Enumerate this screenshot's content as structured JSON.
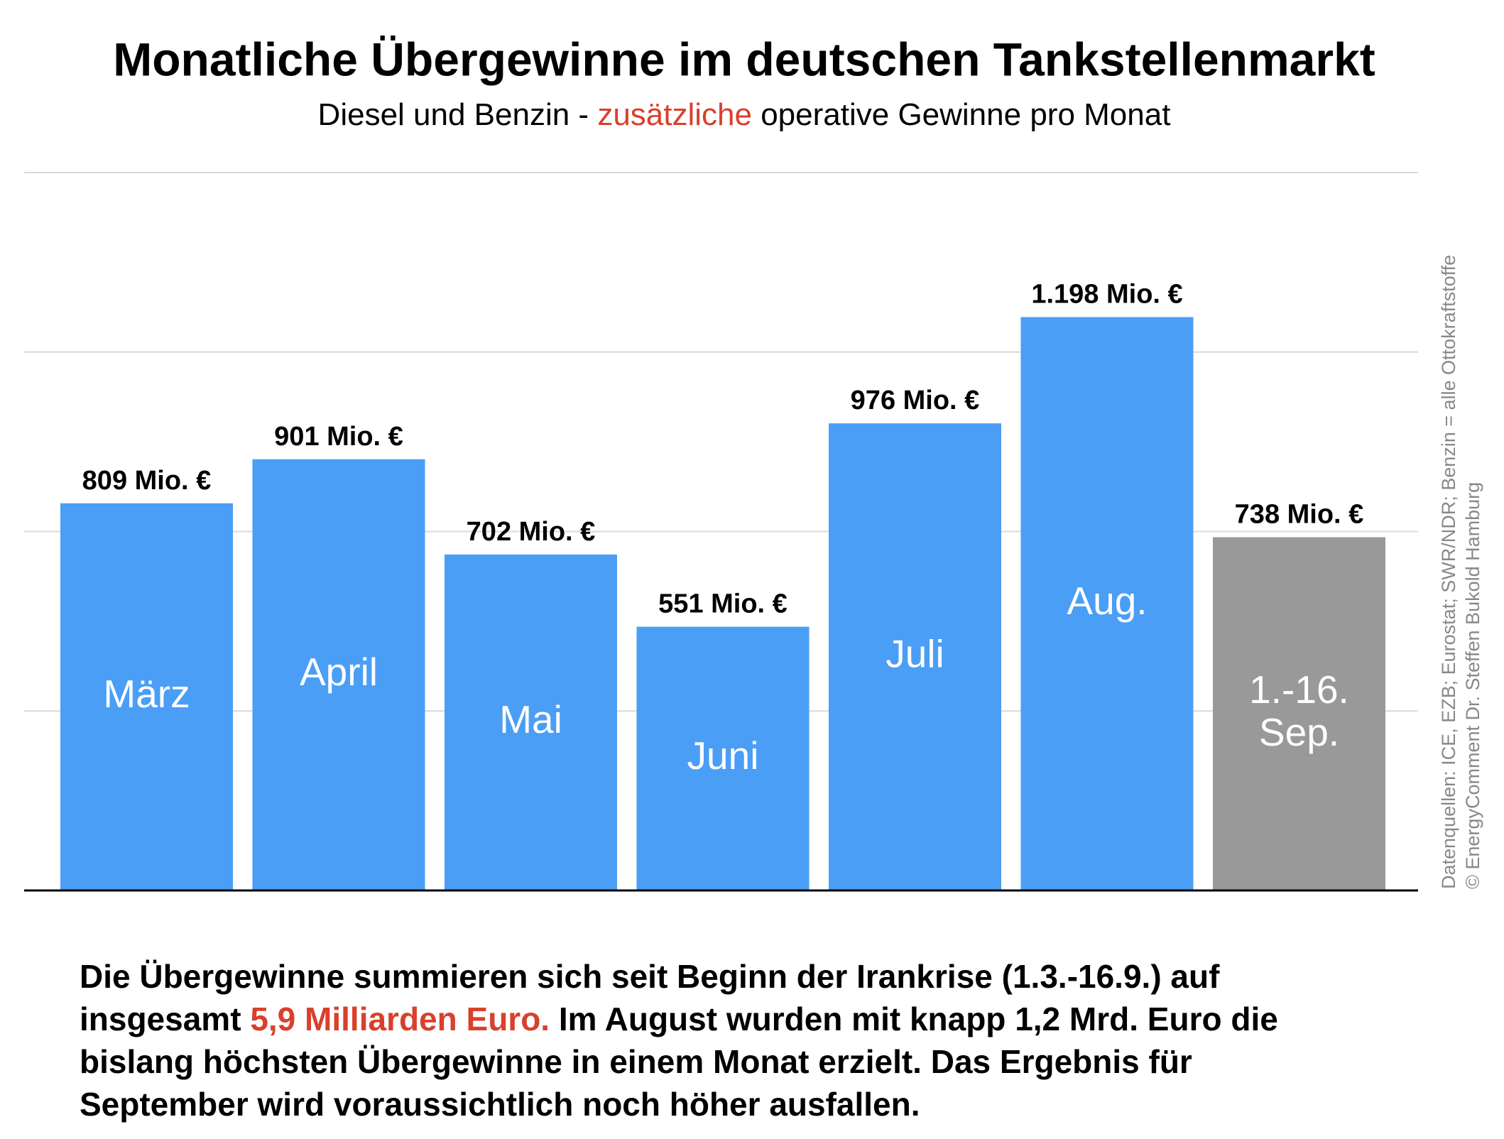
{
  "chart_data": {
    "type": "bar",
    "title": "Monatliche Übergewinne im deutschen Tankstellenmarkt",
    "subtitle": {
      "before": "Diesel und Benzin - ",
      "highlight": "zusätzliche",
      "after": " operative Gewinne pro Monat"
    },
    "categories": [
      [
        "März"
      ],
      [
        "April"
      ],
      [
        "Mai"
      ],
      [
        "Juni"
      ],
      [
        "Juli"
      ],
      [
        "Aug."
      ],
      [
        "1.-16.",
        "Sep."
      ]
    ],
    "values": [
      809,
      901,
      702,
      551,
      976,
      1198,
      738
    ],
    "value_labels": [
      "809 Mio. €",
      "901 Mio. €",
      "702 Mio. €",
      "551 Mio. €",
      "976 Mio. €",
      "1.198 Mio. €",
      "738 Mio. €"
    ],
    "colors": [
      "#4a9ef5",
      "#4a9ef5",
      "#4a9ef5",
      "#4a9ef5",
      "#4a9ef5",
      "#4a9ef5",
      "#999999"
    ],
    "ylim": [
      0,
      1500
    ],
    "yticks": [
      0,
      375,
      750,
      1125,
      1500
    ],
    "grid": true,
    "source": [
      "Datenquellen: ICE, EZB; Eurostat; SWR/NDR; Benzin = alle Ottokraftstoffe",
      "© EnergyComment Dr. Steffen Bukold Hamburg"
    ],
    "note": {
      "before": "Die Übergewinne summieren sich seit Beginn der Irankrise (1.3.-16.9.) auf insgesamt ",
      "highlight": "5,9 Milliarden Euro.",
      "after": " Im August wurden mit knapp 1,2 Mrd. Euro die bislang höchsten Übergewinne in einem Monat erzielt. Das Ergebnis für September wird voraussichtlich noch höher ausfallen."
    }
  }
}
